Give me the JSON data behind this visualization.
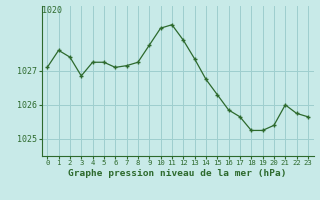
{
  "x": [
    0,
    1,
    2,
    3,
    4,
    5,
    6,
    7,
    8,
    9,
    10,
    11,
    12,
    13,
    14,
    15,
    16,
    17,
    18,
    19,
    20,
    21,
    22,
    23
  ],
  "y": [
    1027.1,
    1027.6,
    1027.4,
    1026.85,
    1027.25,
    1027.25,
    1027.1,
    1027.15,
    1027.25,
    1027.75,
    1028.25,
    1028.35,
    1027.9,
    1027.35,
    1026.75,
    1026.3,
    1025.85,
    1025.65,
    1025.25,
    1025.25,
    1025.4,
    1026.0,
    1025.75,
    1025.65
  ],
  "line_color": "#2d6a2d",
  "marker_color": "#2d6a2d",
  "bg_color": "#c8eae8",
  "grid_color": "#9ecece",
  "title": "Graphe pression niveau de la mer (hPa)",
  "ytick_vals": [
    1025,
    1026,
    1027
  ],
  "ytick_labels": [
    "1025",
    "1026",
    "1027"
  ],
  "ylim": [
    1024.5,
    1028.9
  ],
  "xlim": [
    -0.5,
    23.5
  ],
  "top_label": "1020"
}
